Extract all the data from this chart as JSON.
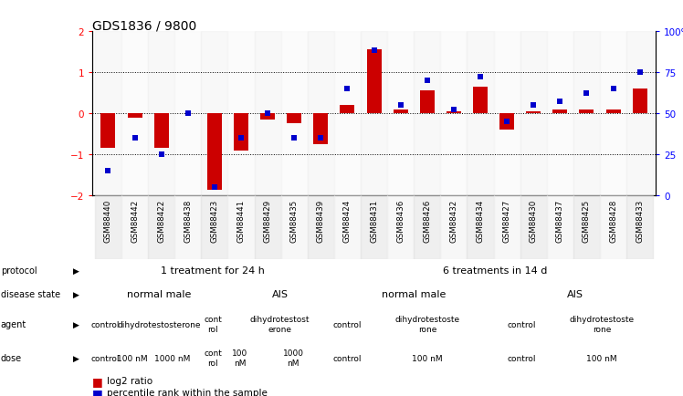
{
  "title": "GDS1836 / 9800",
  "samples": [
    "GSM88440",
    "GSM88442",
    "GSM88422",
    "GSM88438",
    "GSM88423",
    "GSM88441",
    "GSM88429",
    "GSM88435",
    "GSM88439",
    "GSM88424",
    "GSM88431",
    "GSM88436",
    "GSM88426",
    "GSM88432",
    "GSM88434",
    "GSM88427",
    "GSM88430",
    "GSM88437",
    "GSM88425",
    "GSM88428",
    "GSM88433"
  ],
  "log2_ratio": [
    -0.85,
    -0.1,
    -0.85,
    0.0,
    -1.85,
    -0.9,
    -0.15,
    -0.25,
    -0.75,
    0.2,
    1.55,
    0.1,
    0.55,
    0.05,
    0.65,
    -0.4,
    0.05,
    0.1,
    0.1,
    0.1,
    0.6
  ],
  "percentile": [
    15,
    35,
    25,
    50,
    5,
    35,
    50,
    35,
    35,
    65,
    88,
    55,
    70,
    52,
    72,
    45,
    55,
    57,
    62,
    65,
    75
  ],
  "ylim": [
    -2,
    2
  ],
  "y2lim": [
    0,
    100
  ],
  "yticks_left": [
    -2,
    -1,
    0,
    1,
    2
  ],
  "yticks_right": [
    0,
    25,
    50,
    75,
    100
  ],
  "ytick_labels_right": [
    "0",
    "25",
    "50",
    "75",
    "100%"
  ],
  "bar_color": "#cc0000",
  "dot_color": "#0000cc",
  "bg_color": "#ffffff",
  "protocol_data": [
    {
      "label": "1 treatment for 24 h",
      "span": [
        0,
        9
      ],
      "color": "#90ee90"
    },
    {
      "label": "6 treatments in 14 d",
      "span": [
        9,
        21
      ],
      "color": "#66cc55"
    }
  ],
  "disease_state_data": [
    {
      "label": "normal male",
      "span": [
        0,
        5
      ],
      "color": "#aac4ee"
    },
    {
      "label": "AIS",
      "span": [
        5,
        9
      ],
      "color": "#b0a0ee"
    },
    {
      "label": "normal male",
      "span": [
        9,
        15
      ],
      "color": "#aac4ee"
    },
    {
      "label": "AIS",
      "span": [
        15,
        21
      ],
      "color": "#b0a0ee"
    }
  ],
  "agent_data": [
    {
      "label": "control",
      "span": [
        0,
        1
      ],
      "color": "#f0b0f0"
    },
    {
      "label": "dihydrotestosterone",
      "span": [
        1,
        4
      ],
      "color": "#ee60cc"
    },
    {
      "label": "cont\nrol",
      "span": [
        4,
        5
      ],
      "color": "#f0b0f0"
    },
    {
      "label": "dihydrotestost\nerone",
      "span": [
        5,
        9
      ],
      "color": "#ee60cc"
    },
    {
      "label": "control",
      "span": [
        9,
        10
      ],
      "color": "#f0b0f0"
    },
    {
      "label": "dihydrotestoste\nrone",
      "span": [
        10,
        15
      ],
      "color": "#ee60cc"
    },
    {
      "label": "control",
      "span": [
        15,
        17
      ],
      "color": "#f0b0f0"
    },
    {
      "label": "dihydrotestoste\nrone",
      "span": [
        17,
        21
      ],
      "color": "#ee60cc"
    }
  ],
  "dose_data": [
    {
      "label": "control",
      "span": [
        0,
        1
      ],
      "color": "#f5e5b0"
    },
    {
      "label": "100 nM",
      "span": [
        1,
        2
      ],
      "color": "#f5e5b0"
    },
    {
      "label": "1000 nM",
      "span": [
        2,
        4
      ],
      "color": "#e8b840"
    },
    {
      "label": "cont\nrol",
      "span": [
        4,
        5
      ],
      "color": "#f5e5b0"
    },
    {
      "label": "100\nnM",
      "span": [
        5,
        6
      ],
      "color": "#f5e5b0"
    },
    {
      "label": "1000\nnM",
      "span": [
        6,
        9
      ],
      "color": "#e8b840"
    },
    {
      "label": "control",
      "span": [
        9,
        10
      ],
      "color": "#f5e5b0"
    },
    {
      "label": "100 nM",
      "span": [
        10,
        15
      ],
      "color": "#f5e5b0"
    },
    {
      "label": "control",
      "span": [
        15,
        17
      ],
      "color": "#f5e5b0"
    },
    {
      "label": "100 nM",
      "span": [
        17,
        21
      ],
      "color": "#f5e5b0"
    }
  ],
  "row_labels": [
    "protocol",
    "disease state",
    "agent",
    "dose"
  ],
  "legend_items": [
    {
      "color": "#cc0000",
      "label": "log2 ratio"
    },
    {
      "color": "#0000cc",
      "label": "percentile rank within the sample"
    }
  ]
}
